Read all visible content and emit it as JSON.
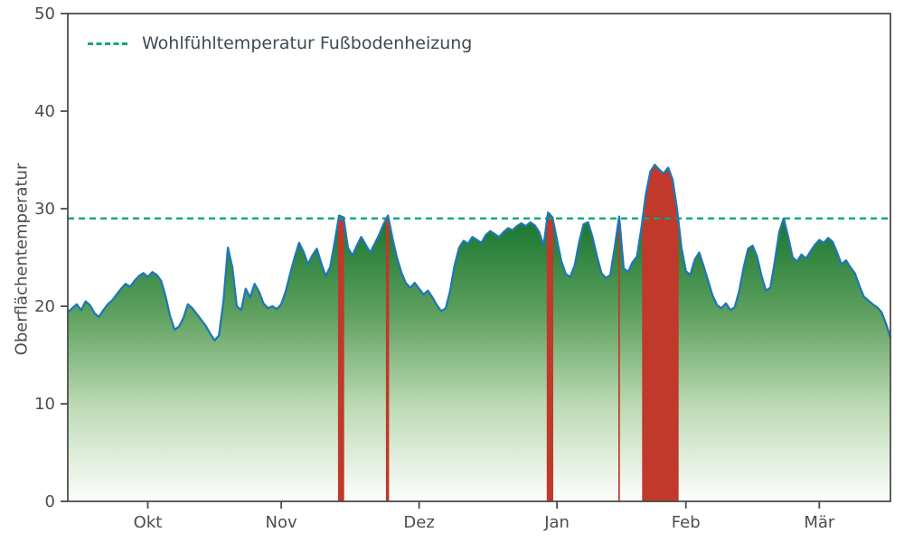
{
  "chart_data": {
    "type": "area",
    "title": "",
    "xlabel": "",
    "ylabel": "Oberflächentemperatur",
    "ylim": [
      0,
      50
    ],
    "yticks": [
      0,
      10,
      20,
      30,
      40,
      50
    ],
    "x_ticks": [
      {
        "label": "Okt",
        "day": 18
      },
      {
        "label": "Nov",
        "day": 48
      },
      {
        "label": "Dez",
        "day": 79
      },
      {
        "label": "Jan",
        "day": 110
      },
      {
        "label": "Feb",
        "day": 139
      },
      {
        "label": "Mär",
        "day": 169
      }
    ],
    "grid": false,
    "legend_position": "upper-left",
    "threshold": {
      "value": 29,
      "label": "Wohlfühltemperatur Fußbodenheizung"
    },
    "series": [
      {
        "name": "Oberflächentemperatur",
        "values": [
          19.4,
          19.8,
          20.2,
          19.6,
          20.5,
          20.1,
          19.3,
          18.9,
          19.6,
          20.2,
          20.6,
          21.2,
          21.8,
          22.3,
          22.0,
          22.6,
          23.1,
          23.4,
          23.0,
          23.5,
          23.2,
          22.6,
          21.0,
          19.0,
          17.6,
          17.9,
          18.8,
          20.2,
          19.8,
          19.2,
          18.6,
          18.0,
          17.2,
          16.5,
          17.0,
          20.5,
          26.0,
          24.0,
          20.0,
          19.6,
          21.8,
          20.9,
          22.3,
          21.5,
          20.3,
          19.8,
          20.0,
          19.7,
          20.2,
          21.5,
          23.3,
          25.0,
          26.5,
          25.6,
          24.3,
          25.2,
          25.9,
          24.4,
          23.1,
          24.0,
          26.5,
          29.3,
          29.1,
          26.0,
          25.2,
          26.2,
          27.1,
          26.3,
          25.5,
          26.4,
          27.3,
          28.4,
          29.3,
          27.0,
          25.0,
          23.5,
          22.4,
          21.9,
          22.4,
          21.8,
          21.2,
          21.6,
          20.9,
          20.1,
          19.5,
          19.8,
          21.6,
          24.2,
          26.0,
          26.7,
          26.4,
          27.1,
          26.8,
          26.5,
          27.3,
          27.7,
          27.4,
          27.1,
          27.6,
          28.0,
          27.8,
          28.2,
          28.5,
          28.2,
          28.6,
          28.3,
          27.6,
          26.2,
          29.6,
          29.1,
          26.8,
          24.6,
          23.3,
          23.0,
          24.2,
          26.6,
          28.4,
          28.6,
          27.1,
          25.1,
          23.4,
          22.9,
          23.2,
          26.0,
          29.2,
          23.9,
          23.5,
          24.5,
          25.1,
          28.0,
          31.5,
          33.8,
          34.5,
          34.0,
          33.6,
          34.2,
          33.0,
          30.0,
          26.0,
          23.6,
          23.2,
          24.8,
          25.5,
          24.1,
          22.6,
          21.1,
          20.1,
          19.8,
          20.3,
          19.6,
          19.9,
          21.6,
          24.0,
          25.9,
          26.2,
          25.1,
          23.1,
          21.6,
          21.9,
          24.6,
          27.6,
          29.0,
          27.1,
          25.0,
          24.6,
          25.3,
          24.9,
          25.6,
          26.3,
          26.8,
          26.5,
          27.0,
          26.6,
          25.5,
          24.3,
          24.7,
          24.0,
          23.4,
          22.1,
          21.0,
          20.6,
          20.2,
          19.9,
          19.4,
          18.2,
          16.8
        ]
      }
    ],
    "colors": {
      "line": "#1f77b4",
      "threshold": "#00a878",
      "exceed_fill": "#c0392b",
      "axis": "#4d4d4d",
      "legend_text": "#3d4b52",
      "area_gradient": [
        {
          "offset": "0%",
          "color": "#0b6328"
        },
        {
          "offset": "20%",
          "color": "#1f7a34"
        },
        {
          "offset": "45%",
          "color": "#5ea05f"
        },
        {
          "offset": "72%",
          "color": "#bcdab4"
        },
        {
          "offset": "100%",
          "color": "#fdfefd"
        }
      ]
    }
  }
}
